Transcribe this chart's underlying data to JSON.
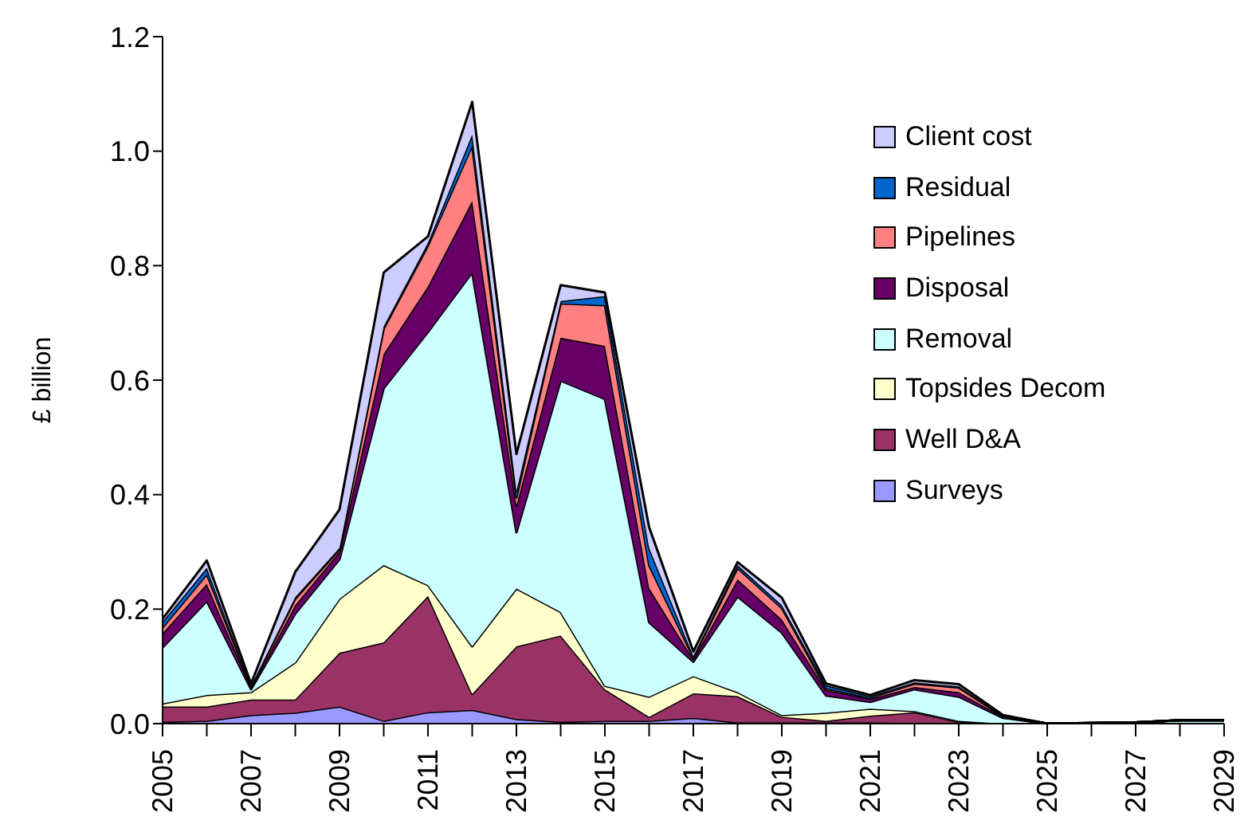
{
  "chart_data": {
    "type": "area",
    "stacked": true,
    "ylabel": "£ billion",
    "categories": [
      "2005",
      null,
      "2007",
      null,
      "2009",
      null,
      "2011",
      null,
      "2013",
      null,
      "2015",
      null,
      "2017",
      null,
      "2019",
      null,
      "2021",
      null,
      "2023",
      null,
      "2025",
      null,
      "2027",
      null,
      "2029"
    ],
    "ylim": [
      0,
      1.2
    ],
    "yticks": [
      {
        "value": 0,
        "label": "0.0"
      },
      {
        "value": 0.2,
        "label": "0.2"
      },
      {
        "value": 0.4,
        "label": "0.4"
      },
      {
        "value": 0.6,
        "label": "0.6"
      },
      {
        "value": 0.8,
        "label": "0.8"
      },
      {
        "value": 1,
        "label": "1.0"
      },
      {
        "value": 1.2,
        "label": "1.2"
      }
    ],
    "grid": false,
    "legend": "right",
    "series": [
      {
        "name": "Surveys",
        "color": "#9999ff",
        "values": [
          0.003,
          0.005,
          0.015,
          0.019,
          0.03,
          0.005,
          0.02,
          0.024,
          0.008,
          0.003,
          0.005,
          0.005,
          0.01,
          0.002,
          0.002,
          0.002,
          0.002,
          0.001,
          0,
          0,
          0,
          0,
          0,
          0,
          0
        ]
      },
      {
        "name": "Well D&A",
        "color": "#993366",
        "values": [
          0.027,
          0.025,
          0.027,
          0.023,
          0.094,
          0.137,
          0.203,
          0.028,
          0.127,
          0.151,
          0.055,
          0.007,
          0.043,
          0.046,
          0.01,
          0.003,
          0.012,
          0.019,
          0.003,
          0,
          0,
          0,
          0,
          0,
          0
        ]
      },
      {
        "name": "Topsides Decom",
        "color": "#ffffcc",
        "values": [
          0.005,
          0.02,
          0.013,
          0.065,
          0.094,
          0.135,
          0.019,
          0.083,
          0.101,
          0.041,
          0.006,
          0.035,
          0.03,
          0.007,
          0.003,
          0.014,
          0.012,
          0.002,
          0.002,
          0,
          0,
          0,
          0,
          0,
          0
        ]
      },
      {
        "name": "Removal",
        "color": "#ccffff",
        "values": [
          0.098,
          0.164,
          0.005,
          0.085,
          0.069,
          0.309,
          0.442,
          0.653,
          0.098,
          0.404,
          0.501,
          0.13,
          0.025,
          0.167,
          0.144,
          0.03,
          0.012,
          0.038,
          0.042,
          0.01,
          0,
          0.001,
          0.002,
          0.006,
          0.006
        ]
      },
      {
        "name": "Disposal",
        "color": "#660066",
        "values": [
          0.025,
          0.03,
          0.003,
          0.015,
          0.014,
          0.06,
          0.08,
          0.125,
          0.047,
          0.075,
          0.093,
          0.06,
          0.004,
          0.03,
          0.023,
          0.01,
          0.005,
          0.004,
          0.008,
          0.002,
          0,
          0,
          0,
          0,
          0
        ]
      },
      {
        "name": "Pipelines",
        "color": "#ff8080",
        "values": [
          0.01,
          0.017,
          0.002,
          0.011,
          0.004,
          0.044,
          0.071,
          0.097,
          0.014,
          0.06,
          0.071,
          0.04,
          0.003,
          0.02,
          0.02,
          0.003,
          0.002,
          0.006,
          0.008,
          0.001,
          0,
          0,
          0,
          0,
          0
        ]
      },
      {
        "name": "Residual",
        "color": "#0066cc",
        "values": [
          0.01,
          0.011,
          0.001,
          0.003,
          0.002,
          0.004,
          0.005,
          0.019,
          0.011,
          0.004,
          0.016,
          0.03,
          0.003,
          0.005,
          0.005,
          0.005,
          0.003,
          0.002,
          0.002,
          0.001,
          0,
          0,
          0,
          0,
          0
        ]
      },
      {
        "name": "Client cost",
        "color": "#ccccff",
        "values": [
          0.005,
          0.013,
          0.004,
          0.044,
          0.067,
          0.094,
          0.011,
          0.057,
          0.065,
          0.028,
          0.006,
          0.036,
          0.008,
          0.005,
          0.013,
          0.003,
          0.002,
          0.004,
          0.004,
          0.001,
          0,
          0,
          0,
          0,
          0
        ]
      }
    ]
  }
}
